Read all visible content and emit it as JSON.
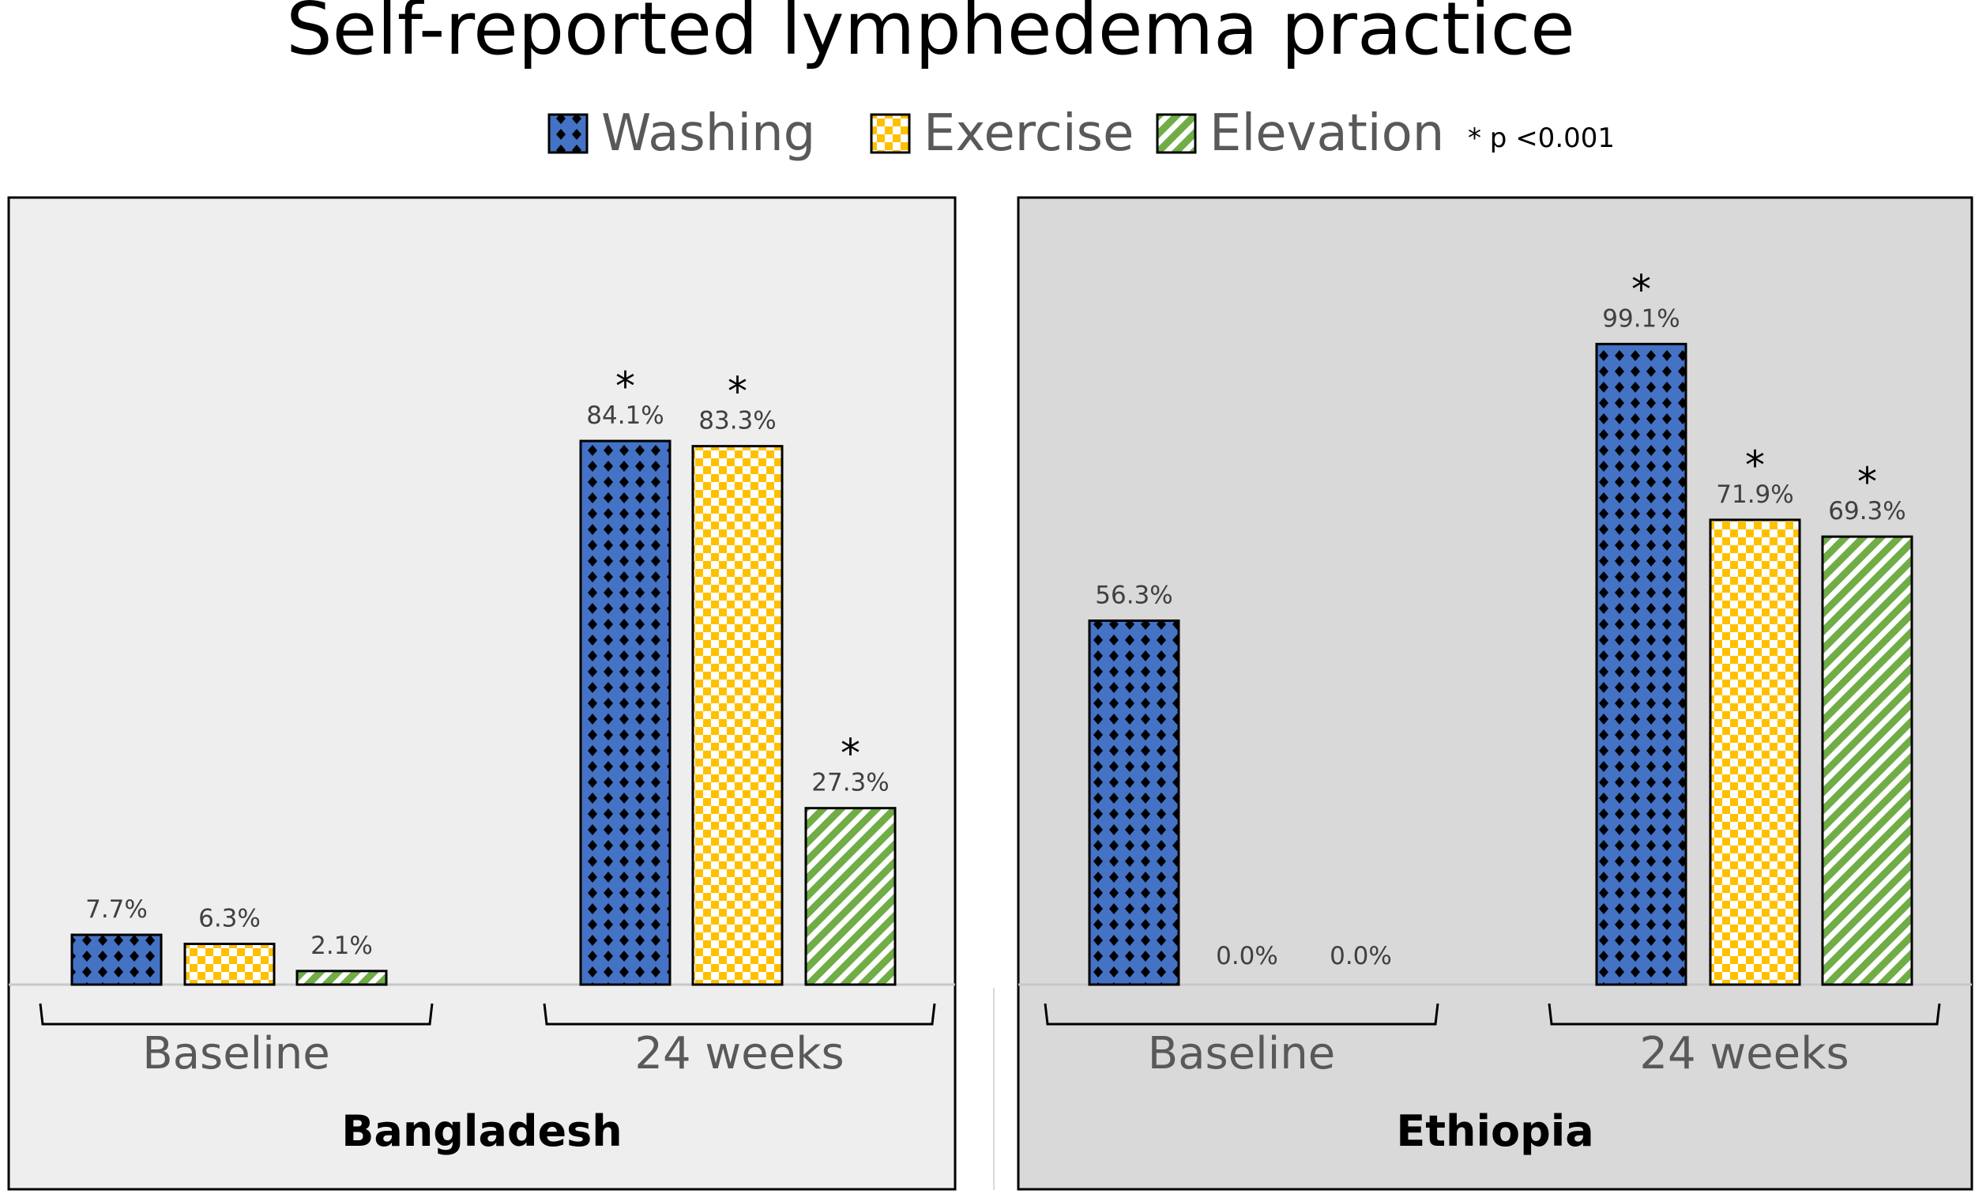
{
  "chart_data": {
    "type": "bar",
    "title": "Self-reported lymphedema practice",
    "legend_placement": "top",
    "annotation": "* p <0.001",
    "unit": "%",
    "ylim": [
      0,
      100
    ],
    "grid": false,
    "series_names": [
      "Washing",
      "Exercise",
      "Elevation"
    ],
    "series_colors": {
      "Washing": "#4472C4",
      "Exercise": "#FFC000",
      "Elevation": "#70AD47"
    },
    "series_patterns": {
      "Washing": "blue with black diamonds",
      "Exercise": "yellow checkerboard",
      "Elevation": "green diagonal stripes"
    },
    "panels": [
      {
        "name": "Bangladesh",
        "background": "#EEEEEE",
        "categories": [
          "Baseline",
          "24 weeks"
        ],
        "series": [
          {
            "name": "Washing",
            "values": [
              7.7,
              84.1
            ],
            "labels": [
              "7.7%",
              "84.1%"
            ],
            "significant": [
              false,
              true
            ]
          },
          {
            "name": "Exercise",
            "values": [
              6.3,
              83.3
            ],
            "labels": [
              "6.3%",
              "83.3%"
            ],
            "significant": [
              false,
              true
            ]
          },
          {
            "name": "Elevation",
            "values": [
              2.1,
              27.3
            ],
            "labels": [
              "2.1%",
              "27.3%"
            ],
            "significant": [
              false,
              true
            ]
          }
        ]
      },
      {
        "name": "Ethiopia",
        "background": "#D9D9D9",
        "categories": [
          "Baseline",
          "24 weeks"
        ],
        "series": [
          {
            "name": "Washing",
            "values": [
              56.3,
              99.1
            ],
            "labels": [
              "56.3%",
              "99.1%"
            ],
            "significant": [
              false,
              true
            ]
          },
          {
            "name": "Exercise",
            "values": [
              0.0,
              71.9
            ],
            "labels": [
              "0.0%",
              "71.9%"
            ],
            "significant": [
              false,
              true
            ]
          },
          {
            "name": "Elevation",
            "values": [
              0.0,
              69.3
            ],
            "labels": [
              "0.0%",
              "69.3%"
            ],
            "significant": [
              false,
              true
            ]
          }
        ]
      }
    ]
  }
}
